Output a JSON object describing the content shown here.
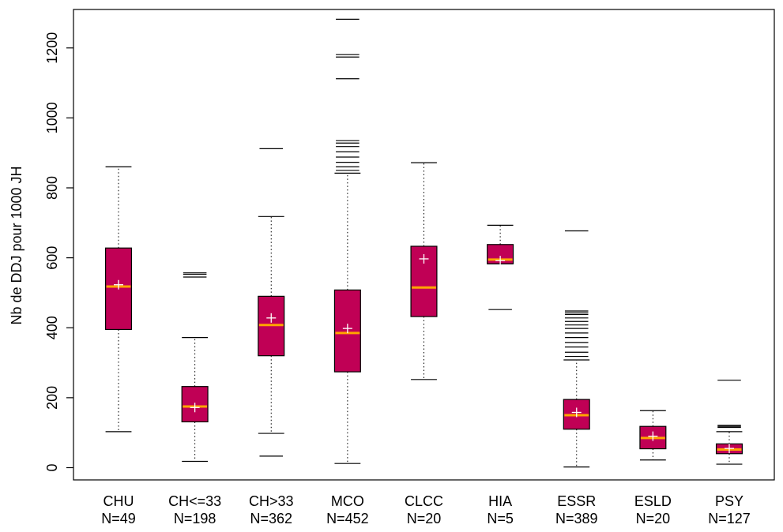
{
  "chart_data": {
    "type": "box",
    "title": "",
    "xlabel": "",
    "ylabel": "Nb de DDJ pour 1000 JH",
    "ylim": [
      -35,
      1310
    ],
    "yticks": [
      0,
      200,
      400,
      600,
      800,
      1000,
      1200
    ],
    "ytick_labels": [
      "0",
      "200",
      "400",
      "600",
      "800",
      "1000",
      "1200"
    ],
    "grid": false,
    "legend": "none",
    "colors": {
      "box_fill": "#C00055",
      "median": "#FFA500",
      "mean_marker": "#FFFFFF",
      "axis": "#000000"
    },
    "categories": [
      "CHU",
      "CH<=33",
      "CH>33",
      "MCO",
      "CLCC",
      "HIA",
      "ESSR",
      "ESLD",
      "PSY"
    ],
    "counts": [
      "N=49",
      "N=198",
      "N=362",
      "N=452",
      "N=20",
      "N=5",
      "N=389",
      "N=20",
      "N=127"
    ],
    "boxes": [
      {
        "label": "CHU",
        "n": 49,
        "whisker_low": 103,
        "q1": 395,
        "median": 518,
        "q3": 628,
        "whisker_high": 860,
        "mean": 523,
        "outliers": []
      },
      {
        "label": "CH<=33",
        "n": 198,
        "whisker_low": 18,
        "q1": 131,
        "median": 175,
        "q3": 232,
        "whisker_high": 372,
        "mean": 172,
        "outliers": [
          545,
          553,
          557
        ]
      },
      {
        "label": "CH>33",
        "n": 362,
        "whisker_low": 98,
        "q1": 320,
        "median": 408,
        "q3": 490,
        "whisker_high": 718,
        "mean": 428,
        "outliers": [
          33,
          912
        ]
      },
      {
        "label": "MCO",
        "n": 452,
        "whisker_low": 12,
        "q1": 274,
        "median": 385,
        "q3": 508,
        "whisker_high": 842,
        "mean": 398,
        "outliers": [
          850,
          860,
          873,
          888,
          903,
          918,
          928,
          935,
          1112,
          1174,
          1181,
          1282
        ]
      },
      {
        "label": "CLCC",
        "n": 20,
        "whisker_low": 252,
        "q1": 432,
        "median": 515,
        "q3": 633,
        "whisker_high": 872,
        "mean": 597,
        "outliers": []
      },
      {
        "label": "HIA",
        "n": 5,
        "whisker_low": 583,
        "q1": 583,
        "median": 595,
        "q3": 638,
        "whisker_high": 693,
        "mean": 592,
        "outliers": [
          452
        ]
      },
      {
        "label": "ESSR",
        "n": 389,
        "whisker_low": 2,
        "q1": 110,
        "median": 150,
        "q3": 195,
        "whisker_high": 308,
        "mean": 158,
        "outliers": [
          318,
          330,
          345,
          358,
          372,
          385,
          398,
          408,
          418,
          428,
          438,
          443,
          448,
          677
        ]
      },
      {
        "label": "ESLD",
        "n": 20,
        "whisker_low": 22,
        "q1": 54,
        "median": 85,
        "q3": 118,
        "whisker_high": 163,
        "mean": 90,
        "outliers": []
      },
      {
        "label": "PSY",
        "n": 127,
        "whisker_low": 10,
        "q1": 40,
        "median": 52,
        "q3": 68,
        "whisker_high": 103,
        "mean": 55,
        "outliers": [
          115,
          118,
          121,
          250
        ]
      }
    ]
  }
}
